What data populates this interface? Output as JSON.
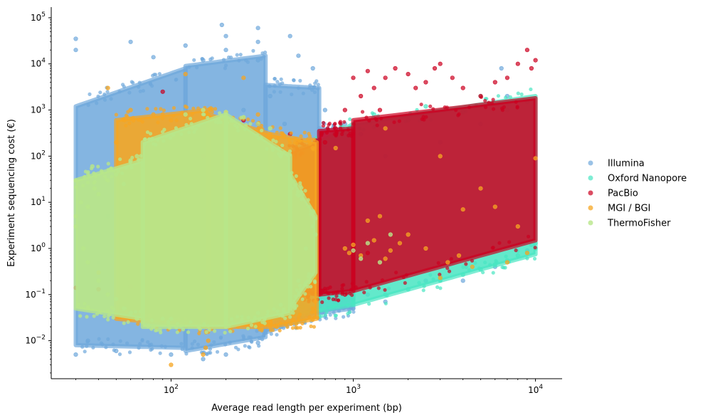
{
  "chart_data": {
    "type": "scatter",
    "title": "",
    "xlabel": "Average read length per experiment (bp)",
    "ylabel": "Experiment sequencing cost (€)",
    "xscale": "log",
    "yscale": "log",
    "xlim": [
      22,
      14000
    ],
    "ylim": [
      0.0015,
      170000
    ],
    "x_ticks": [
      {
        "value": 100,
        "base": "10",
        "exp": "2"
      },
      {
        "value": 1000,
        "base": "10",
        "exp": "3"
      },
      {
        "value": 10000,
        "base": "10",
        "exp": "4"
      }
    ],
    "y_ticks": [
      {
        "value": 0.01,
        "base": "10",
        "exp": "−2"
      },
      {
        "value": 0.1,
        "base": "10",
        "exp": "−1"
      },
      {
        "value": 1,
        "base": "10",
        "exp": "0"
      },
      {
        "value": 10,
        "base": "10",
        "exp": "1"
      },
      {
        "value": 100,
        "base": "10",
        "exp": "2"
      },
      {
        "value": 1000,
        "base": "10",
        "exp": "3"
      },
      {
        "value": 10000,
        "base": "10",
        "exp": "4"
      },
      {
        "value": 100000,
        "base": "10",
        "exp": "5"
      }
    ],
    "grid": false,
    "legend_position": "right",
    "series": [
      {
        "name": "Illumina",
        "color": "#6fa8dc",
        "opacity": 0.7,
        "points": [
          [
            30,
            35000
          ],
          [
            30,
            20000
          ],
          [
            60,
            30000
          ],
          [
            120,
            25000
          ],
          [
            190,
            70000
          ],
          [
            200,
            40000
          ],
          [
            200,
            20000
          ],
          [
            300,
            30000
          ],
          [
            300,
            60000
          ],
          [
            450,
            40000
          ],
          [
            500,
            15000
          ],
          [
            80,
            14000
          ],
          [
            150,
            12000
          ],
          [
            300,
            12000
          ],
          [
            600,
            8000
          ],
          [
            900,
            500
          ],
          [
            1100,
            300
          ],
          [
            1500,
            100
          ],
          [
            3000,
            200
          ],
          [
            5000,
            500
          ],
          [
            6500,
            8000
          ],
          [
            7000,
            2000
          ],
          [
            1200,
            0.1
          ],
          [
            1500,
            0.07
          ],
          [
            2500,
            0.2
          ],
          [
            4000,
            0.2
          ],
          [
            6000,
            0.4
          ],
          [
            9000,
            0.9
          ],
          [
            1000,
            0.05
          ],
          [
            30,
            0.005
          ],
          [
            50,
            0.006
          ],
          [
            100,
            0.005
          ],
          [
            150,
            0.004
          ],
          [
            200,
            0.005
          ],
          [
            300,
            0.009
          ],
          [
            400,
            0.02
          ],
          [
            500,
            0.03
          ],
          [
            35,
            0.01
          ],
          [
            40,
            0.5
          ],
          [
            45,
            5
          ],
          [
            250,
            1000
          ],
          [
            350,
            2000
          ],
          [
            420,
            500
          ],
          [
            600,
            100
          ],
          [
            700,
            1000
          ],
          [
            800,
            200
          ],
          [
            520,
            0.06
          ],
          [
            460,
            0.04
          ],
          [
            620,
            2
          ],
          [
            650,
            10
          ]
        ],
        "regions": [
          {
            "x": [
              30,
              120
            ],
            "y_lo": [
              0.008,
              0.007
            ],
            "y_hi": [
              1200,
              8000
            ]
          },
          {
            "x": [
              120,
              330
            ],
            "y_lo": [
              0.006,
              0.012
            ],
            "y_hi": [
              9000,
              15000
            ]
          },
          {
            "x": [
              330,
              650
            ],
            "y_lo": [
              0.015,
              0.04
            ],
            "y_hi": [
              3500,
              3000
            ]
          },
          {
            "x": [
              650,
              1000
            ],
            "y_lo": [
              0.04,
              0.05
            ],
            "y_hi": [
              400,
              300
            ]
          }
        ]
      },
      {
        "name": "Oxford Nanopore",
        "color": "#48e5c2",
        "opacity": 0.7,
        "points": [
          [
            280,
            0.03
          ],
          [
            350,
            0.035
          ],
          [
            450,
            0.04
          ],
          [
            600,
            0.05
          ],
          [
            800,
            0.06
          ],
          [
            1000,
            0.08
          ],
          [
            1500,
            0.1
          ],
          [
            2000,
            0.13
          ],
          [
            3000,
            0.2
          ],
          [
            4000,
            0.27
          ],
          [
            5000,
            0.35
          ],
          [
            6000,
            0.45
          ],
          [
            7000,
            0.55
          ],
          [
            8000,
            0.7
          ],
          [
            9000,
            0.8
          ],
          [
            10000,
            1.0
          ],
          [
            10000,
            1.3
          ],
          [
            9500,
            1.2
          ],
          [
            7000,
            1000
          ],
          [
            4000,
            900
          ],
          [
            2000,
            600
          ],
          [
            1000,
            300
          ],
          [
            700,
            200
          ],
          [
            600,
            100
          ],
          [
            500,
            50
          ],
          [
            1300,
            800
          ],
          [
            2500,
            1200
          ],
          [
            5000,
            2000
          ],
          [
            9000,
            1500
          ]
        ],
        "regions": [
          {
            "x": [
              280,
              1000
            ],
            "y_lo": [
              0.025,
              0.06
            ],
            "y_hi": [
              30,
              500
            ]
          },
          {
            "x": [
              1000,
              10000
            ],
            "y_lo": [
              0.06,
              0.75
            ],
            "y_hi": [
              500,
              2000
            ]
          }
        ]
      },
      {
        "name": "PacBio",
        "color": "#cc0020",
        "opacity": 0.7,
        "points": [
          [
            1000,
            5000
          ],
          [
            1200,
            7000
          ],
          [
            1300,
            3000
          ],
          [
            1500,
            5000
          ],
          [
            1700,
            8000
          ],
          [
            2000,
            6000
          ],
          [
            2500,
            4000
          ],
          [
            3000,
            10000
          ],
          [
            3500,
            5000
          ],
          [
            4000,
            3000
          ],
          [
            5000,
            2000
          ],
          [
            6000,
            4000
          ],
          [
            7000,
            5000
          ],
          [
            8000,
            10000
          ],
          [
            9000,
            20000
          ],
          [
            9500,
            8000
          ],
          [
            10000,
            12000
          ],
          [
            1100,
            2000
          ],
          [
            900,
            1000
          ],
          [
            800,
            400
          ],
          [
            700,
            200
          ],
          [
            600,
            150
          ],
          [
            500,
            200
          ],
          [
            450,
            300
          ],
          [
            400,
            150
          ],
          [
            350,
            250
          ],
          [
            300,
            500
          ],
          [
            250,
            600
          ],
          [
            200,
            300
          ],
          [
            150,
            100
          ],
          [
            90,
            2500
          ],
          [
            60,
            0.15
          ],
          [
            30,
            0.14
          ],
          [
            40,
            0.13
          ],
          [
            1200,
            0.8
          ],
          [
            700,
            0.12
          ],
          [
            900,
            0.1
          ],
          [
            1400,
            1000
          ],
          [
            2200,
            3000
          ],
          [
            2800,
            8000
          ]
        ],
        "regions": [
          {
            "x": [
              450,
              650
            ],
            "y_lo": [
              0.12,
              0.1
            ],
            "y_hi": [
              120,
              200
            ]
          },
          {
            "x": [
              650,
              1000
            ],
            "y_lo": [
              0.1,
              0.12
            ],
            "y_hi": [
              350,
              400
            ]
          },
          {
            "x": [
              1000,
              10000
            ],
            "y_lo": [
              0.12,
              1.5
            ],
            "y_hi": [
              600,
              1800
            ]
          }
        ]
      },
      {
        "name": "MGI / BGI",
        "color": "#f5a623",
        "opacity": 0.75,
        "points": [
          [
            100,
            0.003
          ],
          [
            150,
            0.005
          ],
          [
            155,
            0.007
          ],
          [
            160,
            0.01
          ],
          [
            200,
            0.02
          ],
          [
            300,
            0.02
          ],
          [
            380,
            0.02
          ],
          [
            420,
            0.05
          ],
          [
            450,
            0.06
          ],
          [
            600,
            0.05
          ],
          [
            620,
            0.07
          ],
          [
            60,
            1000
          ],
          [
            80,
            800
          ],
          [
            100,
            600
          ],
          [
            150,
            700
          ],
          [
            200,
            900
          ],
          [
            300,
            800
          ],
          [
            600,
            150
          ],
          [
            800,
            150
          ],
          [
            900,
            1
          ],
          [
            950,
            0.8
          ],
          [
            1000,
            1.2
          ],
          [
            1100,
            0.7
          ],
          [
            1200,
            4
          ],
          [
            1300,
            1.5
          ],
          [
            1400,
            5
          ],
          [
            1500,
            0.6
          ],
          [
            1600,
            0.9
          ],
          [
            1800,
            1.3
          ],
          [
            2000,
            2
          ],
          [
            2500,
            1
          ],
          [
            3000,
            100
          ],
          [
            3300,
            0.5
          ],
          [
            3800,
            0.7
          ],
          [
            4000,
            7
          ],
          [
            4500,
            0.4
          ],
          [
            5000,
            20
          ],
          [
            6000,
            8
          ],
          [
            7000,
            0.5
          ],
          [
            8000,
            3
          ],
          [
            10000,
            90
          ],
          [
            3000,
            0.23
          ],
          [
            1500,
            400
          ],
          [
            9000,
            0.8
          ],
          [
            45,
            3000
          ],
          [
            120,
            6000
          ],
          [
            40,
            0.3
          ],
          [
            50,
            200
          ],
          [
            90,
            50
          ],
          [
            250,
            5000
          ]
        ],
        "regions": [
          {
            "x": [
              50,
              160
            ],
            "y_lo": [
              0.03,
              0.02
            ],
            "y_hi": [
              600,
              1000
            ]
          },
          {
            "x": [
              160,
              350
            ],
            "y_lo": [
              0.02,
              0.02
            ],
            "y_hi": [
              800,
              300
            ]
          },
          {
            "x": [
              350,
              630
            ],
            "y_lo": [
              0.02,
              0.03
            ],
            "y_hi": [
              300,
              200
            ]
          }
        ]
      },
      {
        "name": "ThermoFisher",
        "color": "#b8e68a",
        "opacity": 0.8,
        "points": [
          [
            30,
            5
          ],
          [
            30,
            3
          ],
          [
            32,
            10
          ],
          [
            35,
            8
          ],
          [
            38,
            20
          ],
          [
            40,
            15
          ],
          [
            45,
            30
          ],
          [
            50,
            40
          ],
          [
            55,
            25
          ],
          [
            60,
            80
          ],
          [
            65,
            100
          ],
          [
            70,
            50
          ],
          [
            35,
            0.5
          ],
          [
            40,
            0.2
          ],
          [
            45,
            0.1
          ],
          [
            50,
            0.08
          ],
          [
            55,
            0.05
          ],
          [
            60,
            0.04
          ],
          [
            65,
            0.03
          ],
          [
            70,
            0.025
          ],
          [
            80,
            0.02
          ],
          [
            90,
            0.03
          ],
          [
            100,
            0.03
          ],
          [
            200,
            0.03
          ],
          [
            300,
            0.04
          ],
          [
            400,
            0.06
          ],
          [
            500,
            0.2
          ],
          [
            550,
            1
          ],
          [
            600,
            3
          ],
          [
            620,
            2
          ],
          [
            120,
            800
          ],
          [
            150,
            1000
          ],
          [
            200,
            900
          ],
          [
            250,
            700
          ],
          [
            300,
            500
          ],
          [
            350,
            400
          ],
          [
            400,
            100
          ],
          [
            1000,
            0.9
          ],
          [
            1100,
            0.6
          ],
          [
            1200,
            1.3
          ],
          [
            1400,
            0.5
          ],
          [
            1600,
            2
          ],
          [
            30,
            30
          ],
          [
            33,
            1
          ],
          [
            37,
            60
          ]
        ],
        "regions": [
          {
            "x": [
              30,
              70
            ],
            "y_lo": [
              0.05,
              0.03
            ],
            "y_hi": [
              30,
              80
            ]
          },
          {
            "x": [
              70,
              200
            ],
            "y_lo": [
              0.02,
              0.02
            ],
            "y_hi": [
              200,
              800
            ]
          },
          {
            "x": [
              200,
              450
            ],
            "y_lo": [
              0.02,
              0.04
            ],
            "y_hi": [
              800,
              100
            ]
          },
          {
            "x": [
              450,
              620
            ],
            "y_lo": [
              0.05,
              0.3
            ],
            "y_hi": [
              40,
              5
            ]
          }
        ]
      }
    ]
  }
}
